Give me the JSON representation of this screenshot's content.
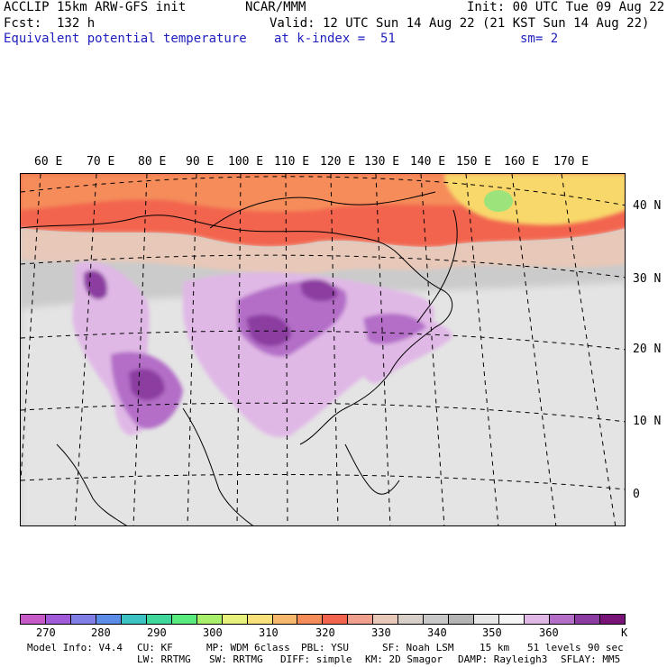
{
  "header": {
    "model": "ACCLIP 15km ARW-GFS init",
    "org": "NCAR/MMM",
    "init": "Init: 00 UTC Tue 09 Aug 22",
    "fcst": "Fcst:  132 h",
    "valid": "Valid: 12 UTC Sun 14 Aug 22 (21 KST Sun 14 Aug 22)",
    "field": "Equivalent potential temperature",
    "level": "at k-index =  51",
    "smooth": "sm= 2"
  },
  "map": {
    "lon_labels": [
      "60 E",
      "70 E",
      "80 E",
      "90 E",
      "100 E",
      "110 E",
      "120 E",
      "130 E",
      "140 E",
      "150 E",
      "160 E",
      "170 E"
    ],
    "lat_labels": [
      "40 N",
      "30 N",
      "20 N",
      "10 N",
      "0"
    ]
  },
  "colorbar": {
    "unit": "K",
    "tick_labels": [
      "270",
      "280",
      "290",
      "300",
      "310",
      "320",
      "330",
      "340",
      "350",
      "360"
    ],
    "colors": [
      "#c65ac6",
      "#a15ad8",
      "#7f7fe6",
      "#5a8ce8",
      "#3cc2c2",
      "#3fd79b",
      "#5aeb7f",
      "#a8f06c",
      "#e6f07a",
      "#f8e07a",
      "#f6b86c",
      "#f58c5a",
      "#f2644e",
      "#f0a08c",
      "#e8c8b8",
      "#d8d0c8",
      "#c8c8c8",
      "#b4b4b4",
      "#e6e6e6",
      "#f5f5f5",
      "#e0b8e6",
      "#b46ec8",
      "#8c3ca0",
      "#781478"
    ]
  },
  "footer": {
    "line1_a": "Model Info: V4.4",
    "line1_b": "CU: KF",
    "line1_c": "MP: WDM 6class",
    "line1_d": "PBL: YSU",
    "line1_e": "SF: Noah LSM",
    "line1_f": "15 km",
    "line1_g": "51 levels",
    "line1_h": "90 sec",
    "line2_a": "LW: RRTMG",
    "line2_b": "SW: RRTMG",
    "line2_c": "DIFF: simple",
    "line2_d": "KM: 2D Smagor",
    "line2_e": "DAMP: Rayleigh3",
    "line2_f": "SFLAY: MM5"
  }
}
